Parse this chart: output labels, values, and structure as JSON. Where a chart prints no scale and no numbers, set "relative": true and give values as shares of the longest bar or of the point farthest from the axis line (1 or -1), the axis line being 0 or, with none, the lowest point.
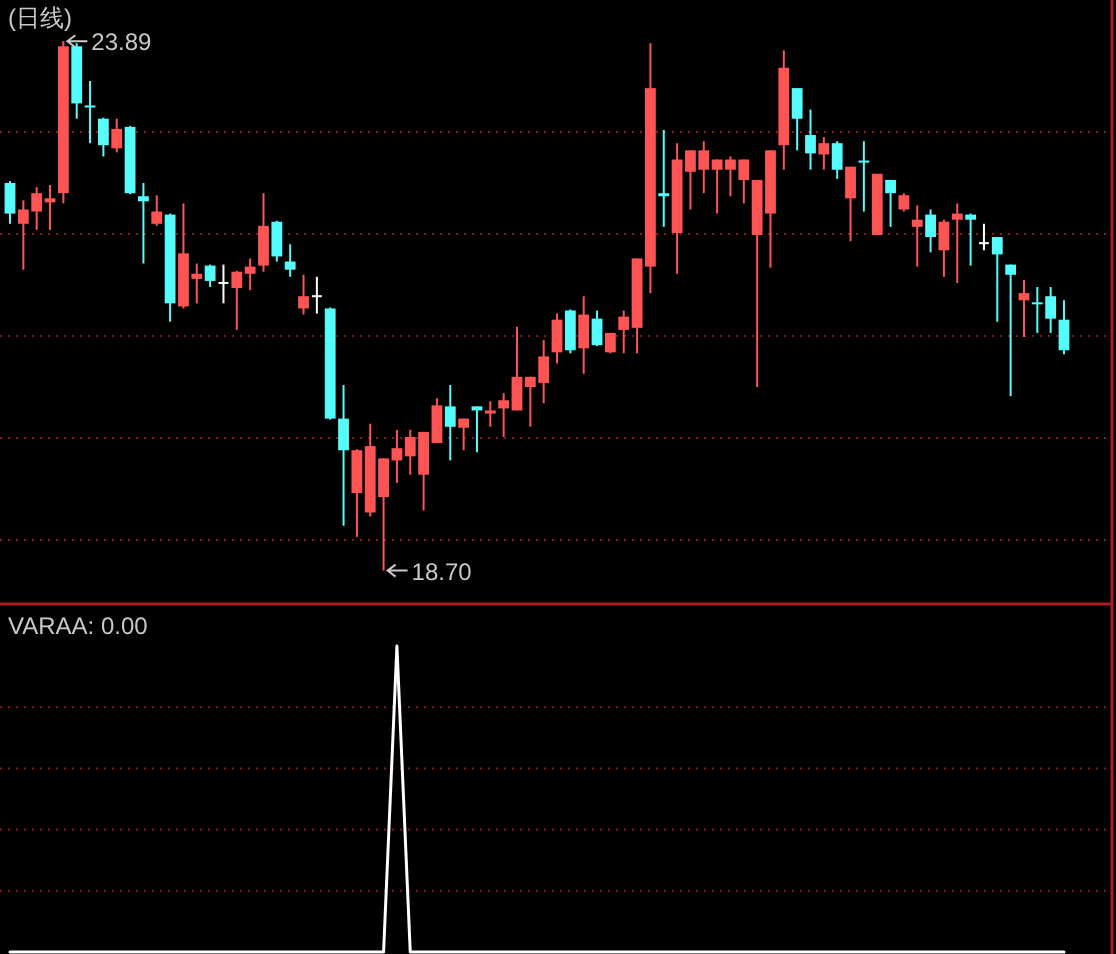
{
  "chart_data": [
    {
      "type": "candlestick",
      "title": "(日线)",
      "categories": [
        null,
        null,
        null,
        null,
        null,
        null,
        null,
        null,
        null,
        null,
        null,
        null,
        null,
        null,
        null,
        null,
        null,
        null,
        null,
        null,
        null,
        null,
        null,
        null,
        null,
        null,
        null,
        null,
        null,
        null,
        null,
        null,
        null,
        null,
        null,
        null,
        null,
        null,
        null,
        null,
        null,
        null,
        null,
        null,
        null,
        null,
        null,
        null,
        null,
        null,
        null,
        null,
        null,
        null,
        null,
        null,
        null,
        null,
        null,
        null,
        null,
        null,
        null,
        null,
        null,
        null,
        null,
        null,
        null,
        null,
        null,
        null,
        null,
        null,
        null,
        null,
        null,
        null,
        null,
        null
      ],
      "ohlc": [
        [
          22.5,
          22.52,
          22.1,
          22.2
        ],
        [
          22.1,
          22.33,
          21.65,
          22.24
        ],
        [
          22.22,
          22.46,
          22.04,
          22.4
        ],
        [
          22.31,
          22.48,
          22.04,
          22.35
        ],
        [
          22.4,
          23.89,
          22.3,
          23.84
        ],
        [
          23.84,
          23.87,
          23.13,
          23.28
        ],
        [
          23.26,
          23.5,
          22.89,
          23.24
        ],
        [
          23.13,
          23.14,
          22.76,
          22.87
        ],
        [
          22.84,
          23.13,
          22.8,
          23.03
        ],
        [
          23.05,
          23.06,
          22.39,
          22.4
        ],
        [
          22.37,
          22.5,
          21.71,
          22.32
        ],
        [
          22.1,
          22.38,
          22.08,
          22.22
        ],
        [
          22.19,
          22.2,
          21.14,
          21.32
        ],
        [
          21.29,
          22.3,
          21.27,
          21.81
        ],
        [
          21.56,
          21.71,
          21.32,
          21.61
        ],
        [
          21.69,
          21.7,
          21.48,
          21.54
        ],
        [
          21.52,
          21.7,
          21.32,
          21.52
        ],
        [
          21.47,
          21.64,
          21.06,
          21.63
        ],
        [
          21.61,
          21.76,
          21.45,
          21.68
        ],
        [
          21.69,
          22.4,
          21.63,
          22.08
        ],
        [
          22.12,
          22.13,
          21.73,
          21.78
        ],
        [
          21.73,
          21.9,
          21.58,
          21.65
        ],
        [
          21.27,
          21.6,
          21.21,
          21.39
        ],
        [
          21.39,
          21.58,
          21.22,
          21.39
        ],
        [
          21.27,
          21.28,
          20.18,
          20.19
        ],
        [
          20.19,
          20.52,
          19.14,
          19.88
        ],
        [
          19.46,
          19.89,
          19.03,
          19.88
        ],
        [
          19.27,
          20.14,
          19.23,
          19.92
        ],
        [
          19.42,
          19.8,
          18.7,
          19.8
        ],
        [
          19.78,
          20.08,
          19.56,
          19.9
        ],
        [
          19.82,
          20.08,
          19.64,
          20.01
        ],
        [
          19.64,
          20.06,
          19.29,
          20.06
        ],
        [
          19.95,
          20.39,
          19.95,
          20.32
        ],
        [
          20.31,
          20.52,
          19.78,
          20.11
        ],
        [
          20.1,
          20.19,
          19.88,
          20.19
        ],
        [
          20.31,
          20.31,
          19.86,
          20.27
        ],
        [
          20.24,
          20.36,
          20.11,
          20.27
        ],
        [
          20.29,
          20.44,
          20.01,
          20.37
        ],
        [
          20.27,
          21.09,
          20.27,
          20.6
        ],
        [
          20.5,
          20.6,
          20.11,
          20.6
        ],
        [
          20.54,
          20.96,
          20.34,
          20.8
        ],
        [
          20.84,
          21.22,
          20.73,
          21.16
        ],
        [
          21.25,
          21.26,
          20.83,
          20.86
        ],
        [
          20.88,
          21.39,
          20.63,
          21.21
        ],
        [
          21.17,
          21.25,
          20.9,
          20.91
        ],
        [
          20.84,
          21.03,
          20.83,
          21.03
        ],
        [
          21.06,
          21.25,
          20.83,
          21.19
        ],
        [
          21.08,
          21.76,
          20.83,
          21.76
        ],
        [
          21.68,
          23.87,
          21.42,
          23.43
        ],
        [
          22.4,
          23.02,
          22.07,
          22.37
        ],
        [
          22.01,
          22.89,
          21.61,
          22.73
        ],
        [
          22.61,
          22.82,
          22.24,
          22.82
        ],
        [
          22.63,
          22.91,
          22.4,
          22.82
        ],
        [
          22.63,
          22.73,
          22.2,
          22.73
        ],
        [
          22.63,
          22.76,
          22.37,
          22.73
        ],
        [
          22.53,
          22.73,
          22.3,
          22.73
        ],
        [
          21.99,
          22.53,
          20.5,
          22.53
        ],
        [
          22.2,
          22.82,
          21.67,
          22.82
        ],
        [
          22.87,
          23.8,
          22.63,
          23.63
        ],
        [
          23.43,
          23.43,
          22.82,
          23.13
        ],
        [
          22.97,
          23.22,
          22.63,
          22.79
        ],
        [
          22.78,
          22.95,
          22.63,
          22.89
        ],
        [
          22.89,
          22.91,
          22.54,
          22.63
        ],
        [
          22.35,
          22.66,
          21.93,
          22.66
        ],
        [
          22.72,
          22.91,
          22.22,
          22.7
        ],
        [
          21.99,
          22.59,
          21.99,
          22.59
        ],
        [
          22.53,
          22.53,
          22.07,
          22.4
        ],
        [
          22.24,
          22.4,
          22.22,
          22.38
        ],
        [
          22.07,
          22.28,
          21.68,
          22.14
        ],
        [
          22.19,
          22.24,
          21.82,
          21.97
        ],
        [
          21.84,
          22.14,
          21.58,
          22.12
        ],
        [
          22.14,
          22.3,
          21.52,
          22.2
        ],
        [
          22.19,
          22.2,
          21.69,
          22.14
        ],
        [
          21.91,
          22.1,
          21.84,
          21.91
        ],
        [
          21.97,
          21.97,
          21.14,
          21.8
        ],
        [
          21.7,
          21.7,
          20.41,
          21.6
        ],
        [
          21.35,
          21.55,
          20.99,
          21.42
        ],
        [
          21.33,
          21.48,
          21.03,
          21.32
        ],
        [
          21.39,
          21.48,
          21.03,
          21.17
        ],
        [
          21.16,
          21.35,
          20.82,
          20.86
        ]
      ],
      "yticks": [
        {
          "value": 19,
          "label": null
        },
        {
          "value": 20,
          "label": null
        },
        {
          "value": 21,
          "label": null
        },
        {
          "value": 22,
          "label": null
        },
        {
          "value": 23,
          "label": null
        }
      ],
      "grid": "y",
      "annotations": [
        "23.89",
        "18.70"
      ]
    },
    {
      "type": "line",
      "title": "VARAA: 0.00",
      "relative": true,
      "ref_lines": [
        {
          "axis": "y",
          "value": 0.2,
          "color": "#8a1a1a",
          "line_style": "dotted"
        },
        {
          "axis": "y",
          "value": 0.4,
          "color": "#8a1a1a",
          "line_style": "dotted"
        },
        {
          "axis": "y",
          "value": 0.6,
          "color": "#8a1a1a",
          "line_style": "dotted"
        },
        {
          "axis": "y",
          "value": 0.8,
          "color": "#8a1a1a",
          "line_style": "dotted"
        }
      ],
      "categories": [
        null,
        null,
        null,
        null,
        null,
        null,
        null,
        null,
        null,
        null,
        null,
        null,
        null,
        null,
        null,
        null,
        null,
        null,
        null,
        null,
        null,
        null,
        null,
        null,
        null,
        null,
        null,
        null,
        null,
        null,
        null,
        null,
        null,
        null,
        null,
        null,
        null,
        null,
        null,
        null,
        null,
        null,
        null,
        null,
        null,
        null,
        null,
        null,
        null,
        null,
        null,
        null,
        null,
        null,
        null,
        null,
        null,
        null,
        null,
        null,
        null,
        null,
        null,
        null,
        null,
        null,
        null,
        null,
        null,
        null,
        null,
        null,
        null,
        null,
        null,
        null,
        null,
        null,
        null,
        null
      ],
      "values": [
        0,
        0,
        0,
        0,
        0,
        0,
        0,
        0,
        0,
        0,
        0,
        0,
        0,
        0,
        0,
        0,
        0,
        0,
        0,
        0,
        0,
        0,
        0,
        0,
        0,
        0,
        0,
        0,
        0,
        1,
        0,
        0,
        0,
        0,
        0,
        0,
        0,
        0,
        0,
        0,
        0,
        0,
        0,
        0,
        0,
        0,
        0,
        0,
        0,
        0,
        0,
        0,
        0,
        0,
        0,
        0,
        0,
        0,
        0,
        0,
        0,
        0,
        0,
        0,
        0,
        0,
        0,
        0,
        0,
        0,
        0,
        0,
        0,
        0,
        0,
        0,
        0,
        0,
        0,
        0
      ],
      "color": "#ffffff"
    }
  ]
}
